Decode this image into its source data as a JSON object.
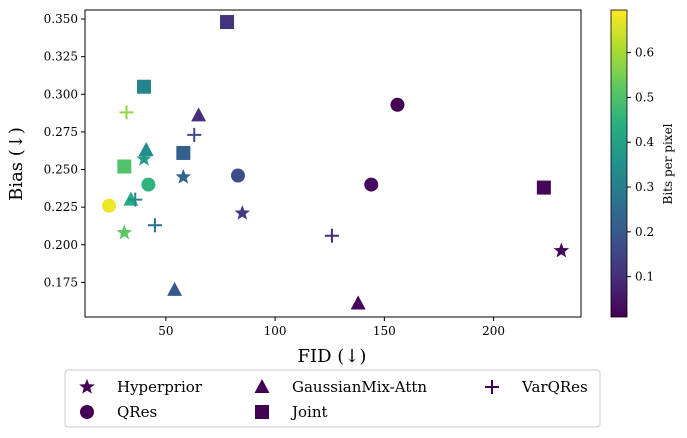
{
  "chart_data": {
    "type": "scatter",
    "xlabel": "FID (↓)",
    "ylabel": "Bias (↓)",
    "xlim": [
      13,
      240
    ],
    "ylim": [
      0.152,
      0.356
    ],
    "x_ticks": [
      50,
      100,
      150,
      200
    ],
    "x_tick_labels": [
      "50",
      "100",
      "150",
      "200"
    ],
    "y_ticks": [
      0.175,
      0.2,
      0.225,
      0.25,
      0.275,
      0.3,
      0.325,
      0.35
    ],
    "y_tick_labels": [
      "0.175",
      "0.200",
      "0.225",
      "0.250",
      "0.275",
      "0.300",
      "0.325",
      "0.350"
    ],
    "grid": false,
    "colorbar": {
      "label": "Bits per pixel",
      "colormap": "viridis",
      "range": [
        0.01,
        0.695
      ],
      "ticks": [
        0.1,
        0.2,
        0.3,
        0.4,
        0.5,
        0.6
      ],
      "tick_labels": [
        "0.1",
        "0.2",
        "0.3",
        "0.4",
        "0.5",
        "0.6"
      ]
    },
    "legend": {
      "placement": "below-center",
      "entries": [
        {
          "name": "Hyperprior",
          "marker": "star"
        },
        {
          "name": "QRes",
          "marker": "circle"
        },
        {
          "name": "GaussianMix-Attn",
          "marker": "triangle"
        },
        {
          "name": "Joint",
          "marker": "square"
        },
        {
          "name": "VarQRes",
          "marker": "plus"
        }
      ],
      "marker_color": "#440154"
    },
    "series": [
      {
        "name": "Hyperprior",
        "marker": "star",
        "points": [
          {
            "x": 231,
            "y": 0.196,
            "bpp": 0.02
          },
          {
            "x": 85,
            "y": 0.221,
            "bpp": 0.12
          },
          {
            "x": 58,
            "y": 0.245,
            "bpp": 0.23
          },
          {
            "x": 40,
            "y": 0.257,
            "bpp": 0.38
          },
          {
            "x": 31,
            "y": 0.208,
            "bpp": 0.52
          }
        ]
      },
      {
        "name": "QRes",
        "marker": "circle",
        "points": [
          {
            "x": 156,
            "y": 0.293,
            "bpp": 0.01
          },
          {
            "x": 144,
            "y": 0.24,
            "bpp": 0.03
          },
          {
            "x": 83,
            "y": 0.246,
            "bpp": 0.17
          },
          {
            "x": 42,
            "y": 0.24,
            "bpp": 0.45
          },
          {
            "x": 24,
            "y": 0.226,
            "bpp": 0.68
          }
        ]
      },
      {
        "name": "GaussianMix-Attn",
        "marker": "triangle",
        "points": [
          {
            "x": 138,
            "y": 0.161,
            "bpp": 0.02
          },
          {
            "x": 65,
            "y": 0.286,
            "bpp": 0.1
          },
          {
            "x": 54,
            "y": 0.17,
            "bpp": 0.2
          },
          {
            "x": 41,
            "y": 0.263,
            "bpp": 0.34
          },
          {
            "x": 34,
            "y": 0.23,
            "bpp": 0.43
          }
        ]
      },
      {
        "name": "Joint",
        "marker": "square",
        "points": [
          {
            "x": 223,
            "y": 0.238,
            "bpp": 0.02
          },
          {
            "x": 78,
            "y": 0.348,
            "bpp": 0.11
          },
          {
            "x": 58,
            "y": 0.261,
            "bpp": 0.22
          },
          {
            "x": 40,
            "y": 0.305,
            "bpp": 0.32
          },
          {
            "x": 31,
            "y": 0.252,
            "bpp": 0.5
          }
        ]
      },
      {
        "name": "VarQRes",
        "marker": "plus",
        "points": [
          {
            "x": 126,
            "y": 0.206,
            "bpp": 0.09
          },
          {
            "x": 63,
            "y": 0.273,
            "bpp": 0.16
          },
          {
            "x": 45,
            "y": 0.213,
            "bpp": 0.26
          },
          {
            "x": 36,
            "y": 0.23,
            "bpp": 0.33
          },
          {
            "x": 32,
            "y": 0.288,
            "bpp": 0.58
          }
        ]
      }
    ]
  }
}
